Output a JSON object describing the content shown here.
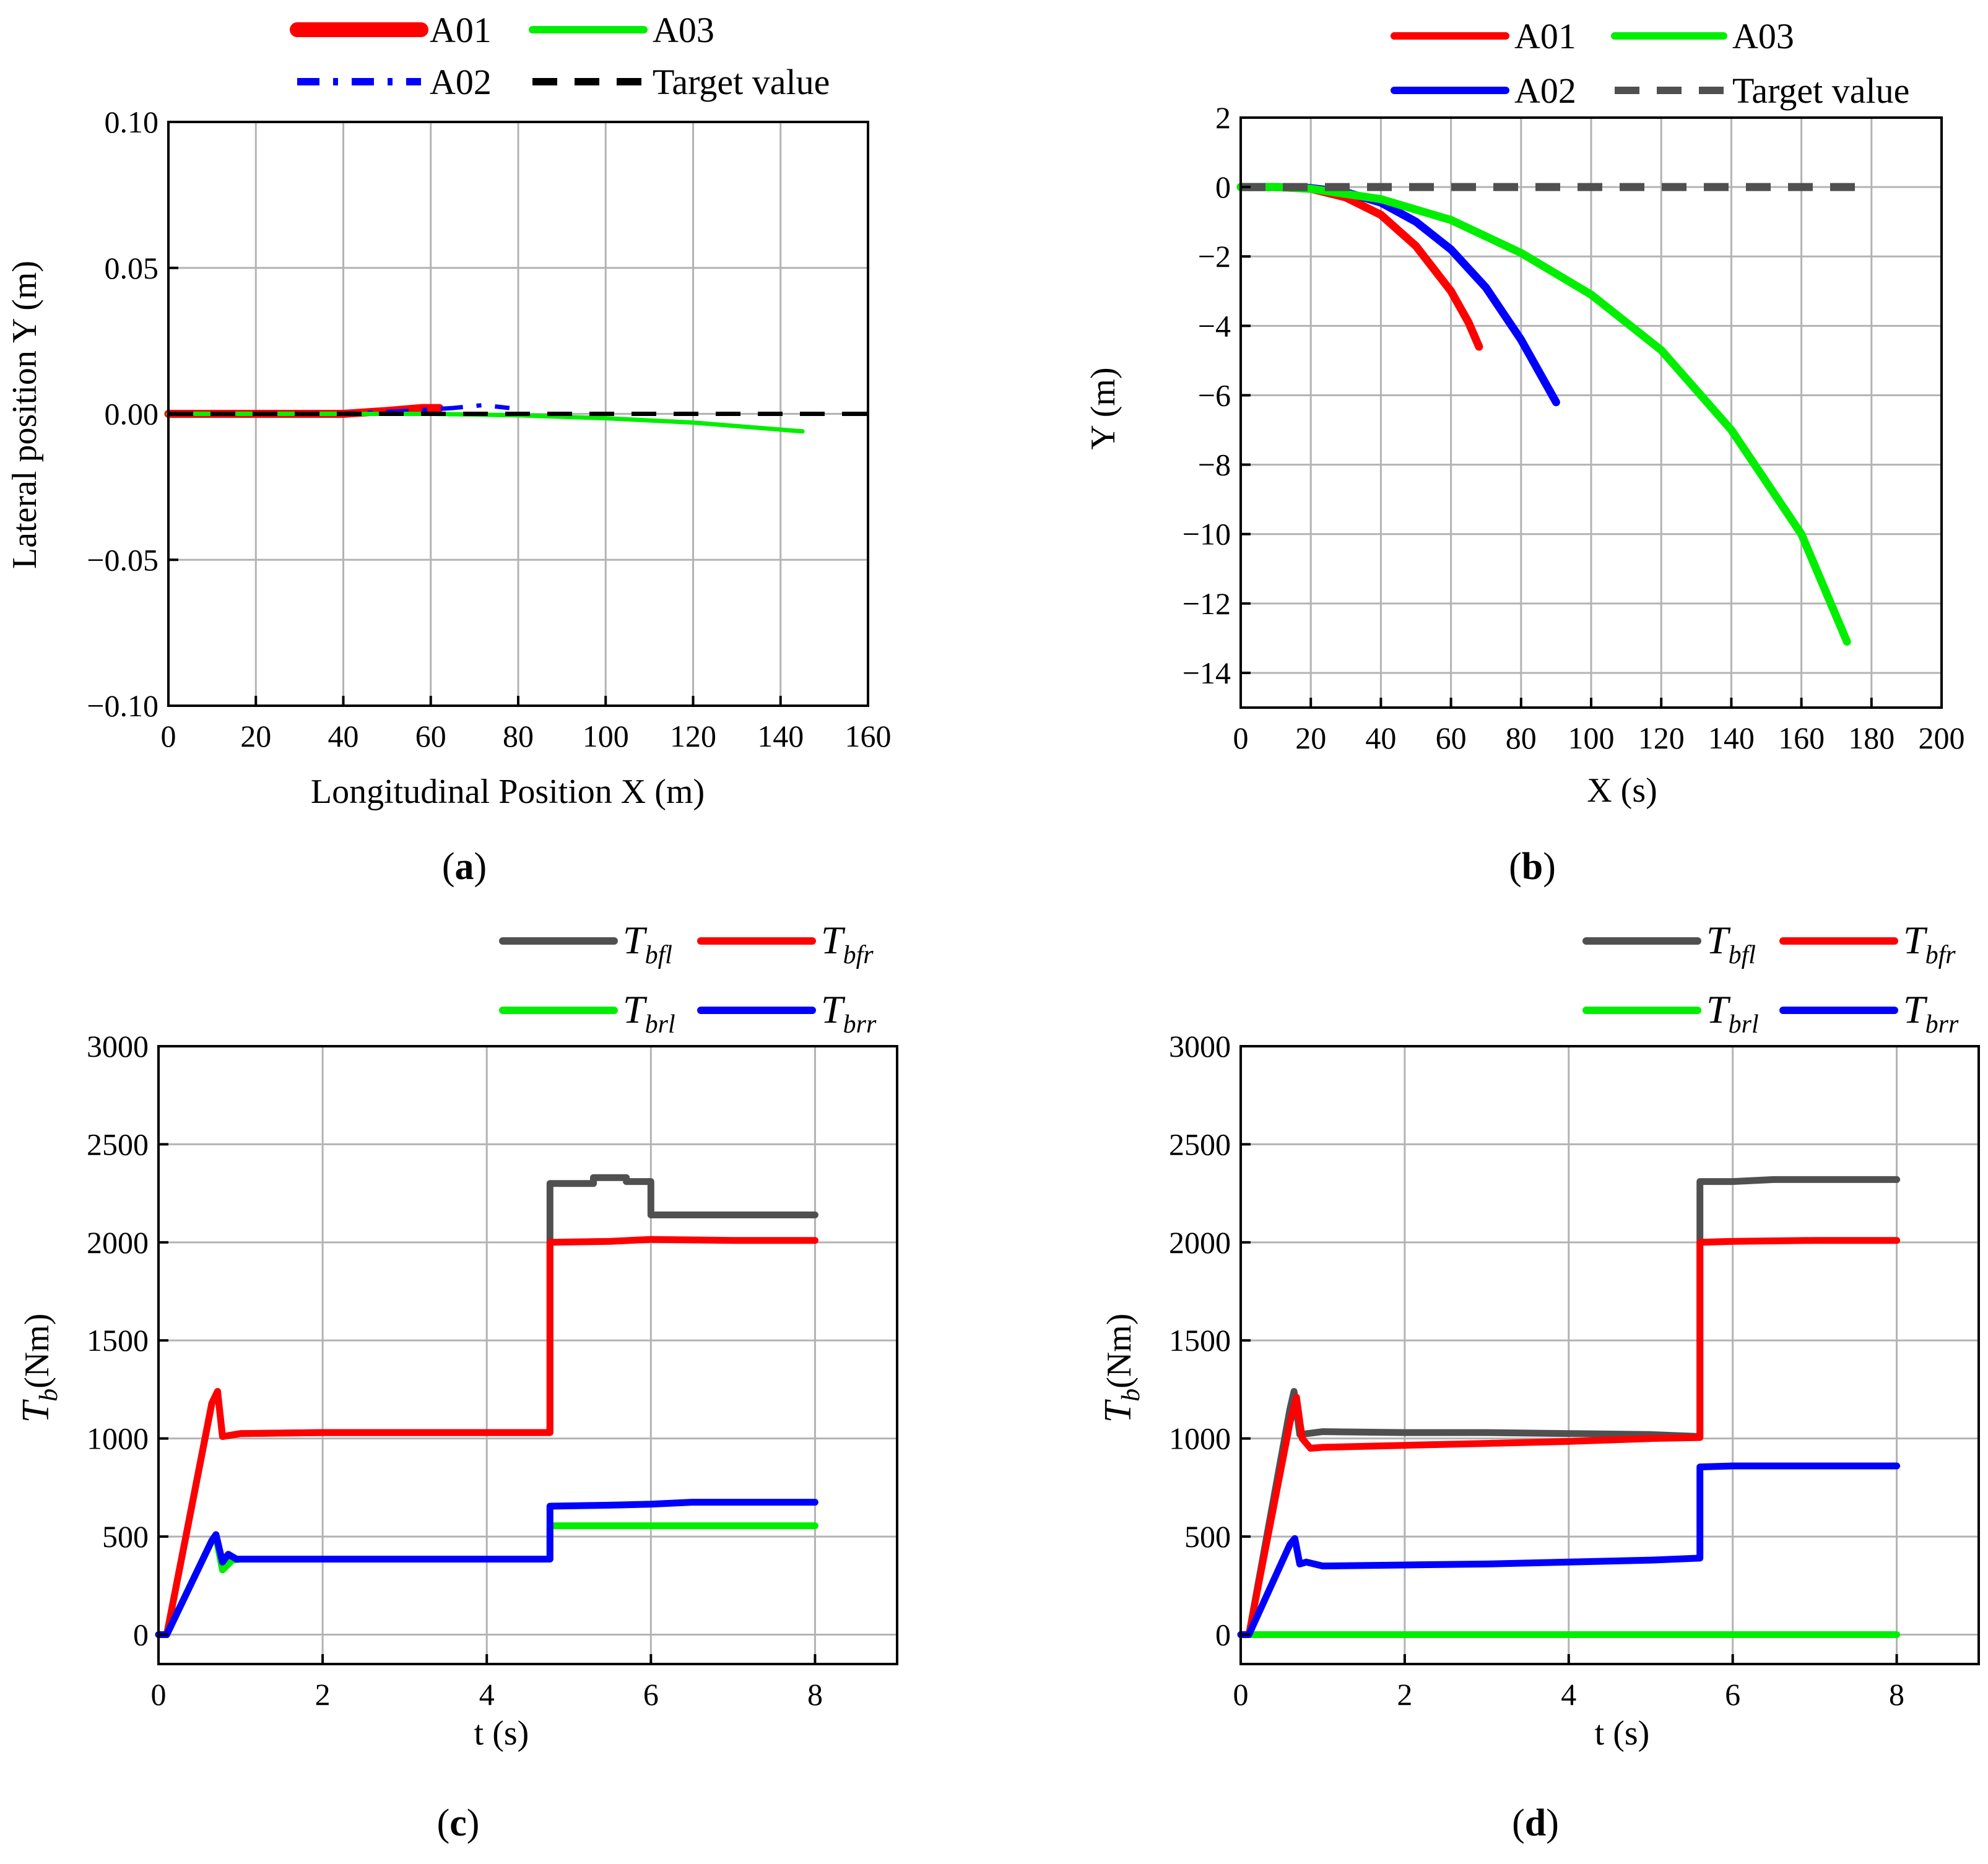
{
  "colors": {
    "red": "#ff0000",
    "green": "#00ee00",
    "blue": "#0000ff",
    "black": "#000000",
    "gray": "#505050"
  },
  "chart_data": [
    {
      "panel": "a",
      "type": "line",
      "xlabel": "Longitudinal Position X (m)",
      "ylabel": "Lateral position Y (m)",
      "xlim": [
        0,
        160
      ],
      "ylim": [
        -0.1,
        0.1
      ],
      "xticks": [
        0,
        20,
        40,
        60,
        80,
        100,
        120,
        140,
        160
      ],
      "xtick_labels": [
        "0",
        "20",
        "40",
        "60",
        "80",
        "100",
        "120",
        "140",
        "160"
      ],
      "yticks": [
        0.1,
        0.05,
        0,
        -0.05,
        -0.1
      ],
      "ytick_labels": [
        "0.10",
        "0.05",
        "0.00",
        "−0.05",
        "−0.10"
      ],
      "panel_label": "a",
      "legend": [
        "A01",
        "A03",
        "A02",
        "Target value"
      ],
      "series": [
        {
          "name": "A01",
          "color": "#ff0000",
          "style": "solid-thick",
          "x": [
            0,
            20,
            40,
            50,
            58,
            62
          ],
          "y": [
            0,
            0,
            0,
            0.001,
            0.002,
            0.002
          ]
        },
        {
          "name": "A02",
          "color": "#0000ff",
          "style": "dashdot",
          "x": [
            0,
            20,
            40,
            55,
            65,
            72,
            78
          ],
          "y": [
            0,
            0,
            0,
            0.001,
            0.002,
            0.003,
            0.002
          ]
        },
        {
          "name": "A03",
          "color": "#00ee00",
          "style": "solid",
          "x": [
            0,
            20,
            40,
            60,
            80,
            100,
            120,
            145
          ],
          "y": [
            0,
            0,
            0,
            0,
            -0.0005,
            -0.0015,
            -0.003,
            -0.006
          ]
        },
        {
          "name": "Target value",
          "color": "#000000",
          "style": "dashed",
          "x": [
            0,
            160
          ],
          "y": [
            0,
            0
          ]
        }
      ]
    },
    {
      "panel": "b",
      "type": "line",
      "xlabel": "X (s)",
      "ylabel": "Y (m)",
      "xlim": [
        0,
        200
      ],
      "ylim": [
        -15,
        2
      ],
      "xticks": [
        0,
        20,
        40,
        60,
        80,
        100,
        120,
        140,
        160,
        180,
        200
      ],
      "xtick_labels": [
        "0",
        "20",
        "40",
        "60",
        "80",
        "100",
        "120",
        "140",
        "160",
        "180",
        "200"
      ],
      "yticks": [
        2,
        0,
        -2,
        -4,
        -6,
        -8,
        -10,
        -12,
        -14
      ],
      "ytick_labels": [
        "2",
        "0",
        "−2",
        "−4",
        "−6",
        "−8",
        "−10",
        "−12",
        "−14"
      ],
      "panel_label": "b",
      "legend": [
        "A01",
        "A03",
        "A02",
        "Target value"
      ],
      "series": [
        {
          "name": "A01",
          "color": "#ff0000",
          "style": "solid",
          "x": [
            0,
            10,
            20,
            30,
            40,
            50,
            60,
            65,
            68
          ],
          "y": [
            0,
            0,
            -0.05,
            -0.3,
            -0.8,
            -1.7,
            -3.0,
            -3.9,
            -4.6
          ]
        },
        {
          "name": "A02",
          "color": "#0000ff",
          "style": "solid",
          "x": [
            0,
            10,
            20,
            30,
            40,
            50,
            60,
            70,
            80,
            90
          ],
          "y": [
            0,
            0,
            -0.03,
            -0.15,
            -0.45,
            -1.0,
            -1.8,
            -2.9,
            -4.4,
            -6.2
          ]
        },
        {
          "name": "A03",
          "color": "#00ee00",
          "style": "solid",
          "x": [
            0,
            10,
            20,
            40,
            60,
            80,
            100,
            120,
            140,
            160,
            173
          ],
          "y": [
            0,
            0,
            -0.05,
            -0.35,
            -0.95,
            -1.9,
            -3.1,
            -4.7,
            -7.0,
            -10.0,
            -13.1
          ]
        },
        {
          "name": "Target value",
          "color": "#505050",
          "style": "dashed",
          "x": [
            0,
            180
          ],
          "y": [
            0,
            0
          ]
        }
      ]
    },
    {
      "panel": "c",
      "type": "line",
      "xlabel": "t (s)",
      "ylabel": "(Nm)",
      "ylabel_main": "T",
      "ylabel_sub": "b",
      "xlim": [
        0,
        9
      ],
      "ylim": [
        -150,
        3000
      ],
      "xticks": [
        0,
        2,
        4,
        6,
        8
      ],
      "xtick_labels": [
        "0",
        "2",
        "4",
        "6",
        "8"
      ],
      "yticks": [
        3000,
        2500,
        2000,
        1500,
        1000,
        500,
        0
      ],
      "ytick_labels": [
        "3000",
        "2500",
        "2000",
        "1500",
        "1000",
        "500",
        "0"
      ],
      "panel_label": "c",
      "legend": [
        "T_bfl",
        "T_bfr",
        "T_brl",
        "T_brr"
      ],
      "legend_main": "T",
      "legend_subs": [
        "bfl",
        "bfr",
        "brl",
        "brr"
      ],
      "series": [
        {
          "name": "T_bfl",
          "color": "#505050",
          "x": [
            0,
            0.1,
            0.65,
            0.72,
            0.78,
            1.0,
            2,
            3,
            4,
            4.77,
            4.77,
            5.3,
            5.3,
            5.7,
            5.7,
            6.0,
            6.0,
            8.0
          ],
          "y": [
            0,
            0,
            1180,
            1240,
            1010,
            1025,
            1030,
            1030,
            1030,
            1030,
            2300,
            2300,
            2330,
            2330,
            2310,
            2310,
            2140,
            2140
          ]
        },
        {
          "name": "T_bfr",
          "color": "#ff0000",
          "x": [
            0,
            0.1,
            0.65,
            0.72,
            0.78,
            1.0,
            2,
            3,
            4,
            4.77,
            4.77,
            5.5,
            6.0,
            7.0,
            8.0
          ],
          "y": [
            0,
            0,
            1180,
            1240,
            1010,
            1025,
            1030,
            1030,
            1030,
            1030,
            2000,
            2005,
            2015,
            2010,
            2010
          ]
        },
        {
          "name": "T_brl",
          "color": "#00ee00",
          "x": [
            0,
            0.1,
            0.65,
            0.7,
            0.78,
            0.9,
            1.0,
            2,
            4,
            4.77,
            4.77,
            8.0
          ],
          "y": [
            0,
            0,
            480,
            500,
            330,
            380,
            385,
            385,
            385,
            385,
            555,
            555
          ]
        },
        {
          "name": "T_brr",
          "color": "#0000ff",
          "x": [
            0,
            0.1,
            0.65,
            0.7,
            0.78,
            0.85,
            0.95,
            2,
            4,
            4.77,
            4.77,
            5.5,
            6.0,
            6.5,
            8.0
          ],
          "y": [
            0,
            0,
            480,
            510,
            370,
            410,
            385,
            385,
            385,
            385,
            655,
            660,
            665,
            675,
            675
          ]
        }
      ]
    },
    {
      "panel": "d",
      "type": "line",
      "xlabel": "t (s)",
      "ylabel": "(Nm)",
      "ylabel_main": "T",
      "ylabel_sub": "b",
      "xlim": [
        0,
        9
      ],
      "ylim": [
        -150,
        3000
      ],
      "xticks": [
        0,
        2,
        4,
        6,
        8
      ],
      "xtick_labels": [
        "0",
        "2",
        "4",
        "6",
        "8"
      ],
      "yticks": [
        3000,
        2500,
        2000,
        1500,
        1000,
        500,
        0
      ],
      "ytick_labels": [
        "3000",
        "2500",
        "2000",
        "1500",
        "1000",
        "500",
        "0"
      ],
      "panel_label": "d",
      "legend": [
        "T_bfl",
        "T_bfr",
        "T_brl",
        "T_brr"
      ],
      "legend_main": "T",
      "legend_subs": [
        "bfl",
        "bfr",
        "brl",
        "brr"
      ],
      "series": [
        {
          "name": "T_bfl",
          "color": "#505050",
          "x": [
            0,
            0.1,
            0.6,
            0.65,
            0.72,
            1.0,
            2,
            3,
            4,
            5,
            5.6,
            5.6,
            6.0,
            6.5,
            7.0,
            8.0
          ],
          "y": [
            0,
            0,
            1150,
            1240,
            1020,
            1035,
            1030,
            1030,
            1025,
            1020,
            1010,
            2310,
            2310,
            2320,
            2320,
            2320
          ]
        },
        {
          "name": "T_bfr",
          "color": "#ff0000",
          "x": [
            0,
            0.1,
            0.6,
            0.68,
            0.75,
            0.85,
            1.0,
            2,
            3,
            4,
            5,
            5.6,
            5.6,
            6.0,
            7.0,
            8.0
          ],
          "y": [
            0,
            0,
            1080,
            1210,
            1000,
            950,
            955,
            965,
            975,
            985,
            1000,
            1005,
            2000,
            2005,
            2010,
            2010
          ]
        },
        {
          "name": "T_brl",
          "color": "#00ee00",
          "x": [
            0,
            0.1,
            8.0
          ],
          "y": [
            0,
            0,
            0
          ]
        },
        {
          "name": "T_brr",
          "color": "#0000ff",
          "x": [
            0,
            0.1,
            0.6,
            0.66,
            0.72,
            0.8,
            1.0,
            2,
            3,
            4,
            5,
            5.6,
            5.6,
            6.0,
            7.0,
            8.0
          ],
          "y": [
            0,
            0,
            460,
            490,
            360,
            370,
            350,
            355,
            360,
            370,
            380,
            390,
            855,
            860,
            860,
            860
          ]
        }
      ]
    }
  ]
}
